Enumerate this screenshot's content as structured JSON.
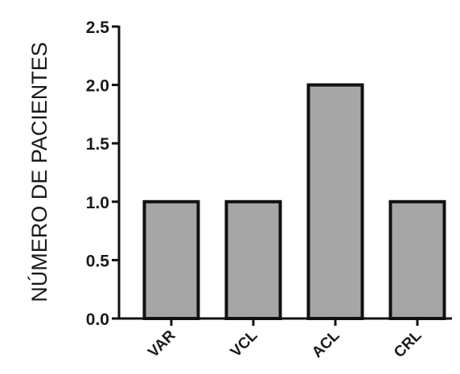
{
  "chart_data": {
    "type": "bar",
    "title": "",
    "xlabel": "",
    "ylabel": "NÚMERO DE PACIENTES",
    "categories": [
      "VAR",
      "VCL",
      "ACL",
      "CRL"
    ],
    "values": [
      1.0,
      1.0,
      2.0,
      1.0
    ],
    "ylim": [
      0,
      2.5
    ],
    "yticks": [
      "0.0",
      "0.5",
      "1.0",
      "1.5",
      "2.0",
      "2.5"
    ],
    "grid": false,
    "legend": "none",
    "bar_color": "#a6a6a6",
    "edge_color": "#111111"
  }
}
